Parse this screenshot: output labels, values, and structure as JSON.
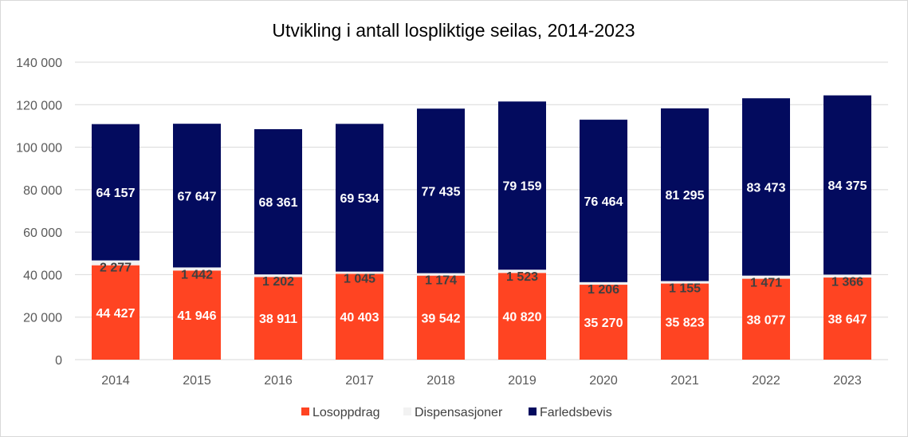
{
  "colors": {
    "Losoppdrag": "#ff4422",
    "Dispensasjoner": "#f2f2f2",
    "Farledsbevis": "#030b5e",
    "grid": "#d9d9d9"
  },
  "chart_data": {
    "type": "bar",
    "stacked": true,
    "title": "Utvikling i antall lospliktige seilas, 2014-2023",
    "xlabel": "",
    "ylabel": "",
    "ylim": [
      0,
      140000
    ],
    "yticks": [
      0,
      20000,
      40000,
      60000,
      80000,
      100000,
      120000,
      140000
    ],
    "ytick_labels": [
      "0",
      "20 000",
      "40 000",
      "60 000",
      "80 000",
      "100 000",
      "120 000",
      "140 000"
    ],
    "grid": true,
    "legend_position": "bottom",
    "categories": [
      "2014",
      "2015",
      "2016",
      "2017",
      "2018",
      "2019",
      "2020",
      "2021",
      "2022",
      "2023"
    ],
    "series": [
      {
        "name": "Losoppdrag",
        "values": [
          44427,
          41946,
          38911,
          40403,
          39542,
          40820,
          35270,
          35823,
          38077,
          38647
        ],
        "labels": [
          "44 427",
          "41 946",
          "38 911",
          "40 403",
          "39 542",
          "40 820",
          "35 270",
          "35 823",
          "38 077",
          "38 647"
        ]
      },
      {
        "name": "Dispensasjoner",
        "values": [
          2277,
          1442,
          1202,
          1045,
          1174,
          1523,
          1206,
          1155,
          1471,
          1366
        ],
        "labels": [
          "2 277",
          "1 442",
          "1 202",
          "1 045",
          "1 174",
          "1 523",
          "1 206",
          "1 155",
          "1 471",
          "1 366"
        ]
      },
      {
        "name": "Farledsbevis",
        "values": [
          64157,
          67647,
          68361,
          69534,
          77435,
          79159,
          76464,
          81295,
          83473,
          84375
        ],
        "labels": [
          "64 157",
          "67 647",
          "68 361",
          "69 534",
          "77 435",
          "79 159",
          "76 464",
          "81 295",
          "83 473",
          "84 375"
        ]
      }
    ]
  }
}
